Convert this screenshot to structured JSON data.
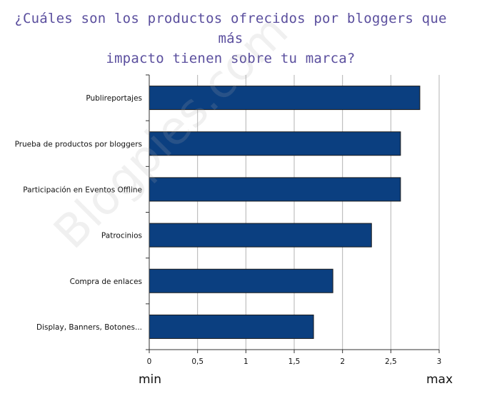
{
  "title_lines": [
    "¿Cuáles son los productos ofrecidos por bloggers que más",
    "impacto tienen sobre tu marca?"
  ],
  "watermark": "Blogpies.com",
  "scale_labels": {
    "min": "min",
    "max": "max"
  },
  "colors": {
    "bar_fill": "#0b3f80",
    "bar_stroke": "#1a1a1a",
    "grid": "#b3b3b3",
    "axis": "#333333",
    "title": "#5b4f9e"
  },
  "chart_data": {
    "type": "bar",
    "orientation": "horizontal",
    "categories": [
      "Publireportajes",
      "Prueba de productos por bloggers",
      "Participación en Eventos Offline",
      "Patrocinios",
      "Compra de enlaces",
      "Display, Banners, Botones..."
    ],
    "values": [
      2.8,
      2.6,
      2.6,
      2.3,
      1.9,
      1.7
    ],
    "xlim": [
      0,
      3
    ],
    "xticks": [
      0,
      0.5,
      1,
      1.5,
      2,
      2.5,
      3
    ],
    "xtick_labels": [
      "0",
      "0,5",
      "1",
      "1,5",
      "2",
      "2,5",
      "3"
    ],
    "grid": "vertical",
    "legend": "none"
  }
}
